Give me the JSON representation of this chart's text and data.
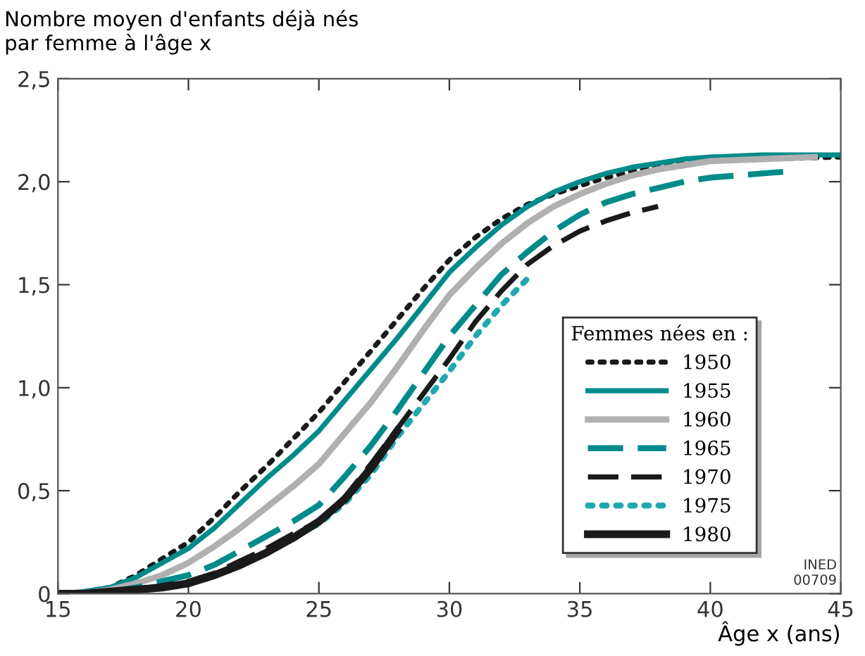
{
  "chart_data": {
    "type": "line",
    "ylabel": "Nombre moyen d'enfants déjà nés\npar femme à l'âge x",
    "xlabel": "Âge x (ans)",
    "legend_title": "Femmes nées en :",
    "legend": "lower right",
    "grid": false,
    "marker": "none",
    "xlim": [
      15,
      45
    ],
    "xticks": [
      15,
      20,
      25,
      30,
      35,
      40,
      45
    ],
    "ylim": [
      0,
      2.5
    ],
    "yticks": [
      0,
      {
        "value": 0.5,
        "label": "0,5"
      },
      {
        "value": 1.0,
        "label": "1,0"
      },
      {
        "value": 1.5,
        "label": "1,5"
      },
      {
        "value": 2.0,
        "label": "2,0"
      },
      {
        "value": 2.5,
        "label": "2,5"
      }
    ],
    "annotations": [
      "INED\n00709"
    ],
    "series": [
      {
        "name": "1950",
        "color": "#1a1a1a",
        "line_style": "dotted",
        "x": [
          15,
          16,
          17,
          18,
          19,
          20,
          21,
          22,
          23,
          24,
          25,
          26,
          27,
          28,
          29,
          30,
          31,
          32,
          33,
          34,
          35,
          36,
          37,
          38,
          39,
          40,
          42,
          45
        ],
        "values": [
          0,
          0.01,
          0.03,
          0.09,
          0.17,
          0.25,
          0.37,
          0.5,
          0.62,
          0.75,
          0.88,
          1.03,
          1.18,
          1.33,
          1.48,
          1.62,
          1.73,
          1.82,
          1.89,
          1.94,
          1.98,
          2.02,
          2.05,
          2.07,
          2.09,
          2.1,
          2.11,
          2.12
        ]
      },
      {
        "name": "1955",
        "color": "#008b8b",
        "line_style": "solid",
        "x": [
          15,
          16,
          17,
          18,
          19,
          20,
          21,
          22,
          23,
          24,
          25,
          26,
          27,
          28,
          29,
          30,
          31,
          32,
          33,
          34,
          35,
          36,
          37,
          38,
          39,
          40,
          42,
          45
        ],
        "values": [
          0,
          0.01,
          0.03,
          0.08,
          0.15,
          0.22,
          0.32,
          0.44,
          0.56,
          0.67,
          0.79,
          0.94,
          1.09,
          1.24,
          1.4,
          1.56,
          1.68,
          1.79,
          1.88,
          1.95,
          2.0,
          2.04,
          2.07,
          2.09,
          2.11,
          2.12,
          2.13,
          2.13
        ]
      },
      {
        "name": "1960",
        "color": "#b0b0b0",
        "line_style": "solid",
        "x": [
          15,
          16,
          17,
          18,
          19,
          20,
          21,
          22,
          23,
          24,
          25,
          26,
          27,
          28,
          29,
          30,
          31,
          32,
          33,
          34,
          35,
          36,
          37,
          38,
          39,
          40,
          42,
          44
        ],
        "values": [
          0,
          0,
          0.02,
          0.05,
          0.09,
          0.15,
          0.23,
          0.32,
          0.42,
          0.52,
          0.63,
          0.78,
          0.93,
          1.1,
          1.28,
          1.45,
          1.58,
          1.7,
          1.8,
          1.88,
          1.94,
          1.99,
          2.03,
          2.06,
          2.08,
          2.1,
          2.11,
          2.12
        ]
      },
      {
        "name": "1965",
        "color": "#008b8b",
        "line_style": "dashed",
        "x": [
          15,
          16,
          17,
          18,
          19,
          20,
          21,
          22,
          23,
          24,
          25,
          26,
          27,
          28,
          29,
          30,
          31,
          32,
          33,
          34,
          35,
          36,
          37,
          38,
          39,
          40,
          41,
          42,
          43
        ],
        "values": [
          0,
          0,
          0.01,
          0.03,
          0.06,
          0.09,
          0.14,
          0.21,
          0.28,
          0.35,
          0.43,
          0.57,
          0.72,
          0.89,
          1.07,
          1.25,
          1.4,
          1.55,
          1.66,
          1.76,
          1.84,
          1.9,
          1.94,
          1.97,
          2.0,
          2.02,
          2.03,
          2.04,
          2.05
        ]
      },
      {
        "name": "1970",
        "color": "#1a1a1a",
        "line_style": "dashed",
        "x": [
          15,
          16,
          17,
          18,
          19,
          20,
          21,
          22,
          23,
          24,
          25,
          26,
          27,
          28,
          29,
          30,
          31,
          32,
          33,
          34,
          35,
          36,
          37,
          38
        ],
        "values": [
          0,
          0,
          0.01,
          0.02,
          0.04,
          0.06,
          0.1,
          0.16,
          0.22,
          0.29,
          0.35,
          0.47,
          0.63,
          0.8,
          0.97,
          1.14,
          1.32,
          1.47,
          1.6,
          1.69,
          1.76,
          1.81,
          1.85,
          1.88
        ]
      },
      {
        "name": "1975",
        "color": "#20a8b0",
        "line_style": "dotted",
        "x": [
          15,
          16,
          17,
          18,
          19,
          20,
          21,
          22,
          23,
          24,
          25,
          26,
          27,
          28,
          29,
          30,
          31,
          32,
          33
        ],
        "values": [
          0,
          0,
          0.01,
          0.02,
          0.03,
          0.05,
          0.09,
          0.14,
          0.2,
          0.27,
          0.34,
          0.44,
          0.58,
          0.76,
          0.92,
          1.08,
          1.25,
          1.4,
          1.53
        ]
      },
      {
        "name": "1980",
        "color": "#1a1a1a",
        "line_style": "solid",
        "x": [
          15,
          16,
          17,
          18,
          19,
          20,
          21,
          22,
          23,
          24,
          25,
          26,
          27,
          28
        ],
        "values": [
          0,
          0,
          0.01,
          0.02,
          0.03,
          0.05,
          0.09,
          0.14,
          0.2,
          0.27,
          0.35,
          0.46,
          0.61,
          0.79
        ]
      }
    ]
  }
}
